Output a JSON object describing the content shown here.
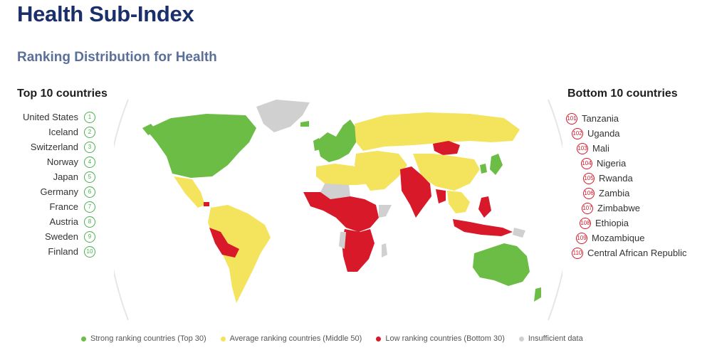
{
  "title": "Health Sub-Index",
  "subtitle": "Ranking Distribution for Health",
  "colors": {
    "strong": "#6cbd45",
    "average": "#f4e35c",
    "low": "#d7192a",
    "insufficient": "#d0d0d0",
    "title": "#1b2f6b"
  },
  "top10": {
    "heading": "Top 10 countries",
    "items": [
      {
        "name": "United States",
        "rank": "1"
      },
      {
        "name": "Iceland",
        "rank": "2"
      },
      {
        "name": "Switzerland",
        "rank": "3"
      },
      {
        "name": "Norway",
        "rank": "4"
      },
      {
        "name": "Japan",
        "rank": "5"
      },
      {
        "name": "Germany",
        "rank": "6"
      },
      {
        "name": "France",
        "rank": "7"
      },
      {
        "name": "Austria",
        "rank": "8"
      },
      {
        "name": "Sweden",
        "rank": "9"
      },
      {
        "name": "Finland",
        "rank": "10"
      }
    ]
  },
  "bottom10": {
    "heading": "Bottom 10 countries",
    "items": [
      {
        "name": "Tanzania",
        "rank": "101"
      },
      {
        "name": "Uganda",
        "rank": "102"
      },
      {
        "name": "Mali",
        "rank": "103"
      },
      {
        "name": "Nigeria",
        "rank": "104"
      },
      {
        "name": "Rwanda",
        "rank": "105"
      },
      {
        "name": "Zambia",
        "rank": "106"
      },
      {
        "name": "Zimbabwe",
        "rank": "107"
      },
      {
        "name": "Ethiopia",
        "rank": "108"
      },
      {
        "name": "Mozambique",
        "rank": "109"
      },
      {
        "name": "Central African Republic",
        "rank": "110"
      }
    ]
  },
  "legend": [
    {
      "label": "Strong ranking countries (Top 30)",
      "color": "#6cbd45"
    },
    {
      "label": "Average ranking countries (Middle 50)",
      "color": "#f4e35c"
    },
    {
      "label": "Low ranking countries (Bottom 30)",
      "color": "#d7192a"
    },
    {
      "label": "Insufficient data",
      "color": "#d0d0d0"
    }
  ]
}
